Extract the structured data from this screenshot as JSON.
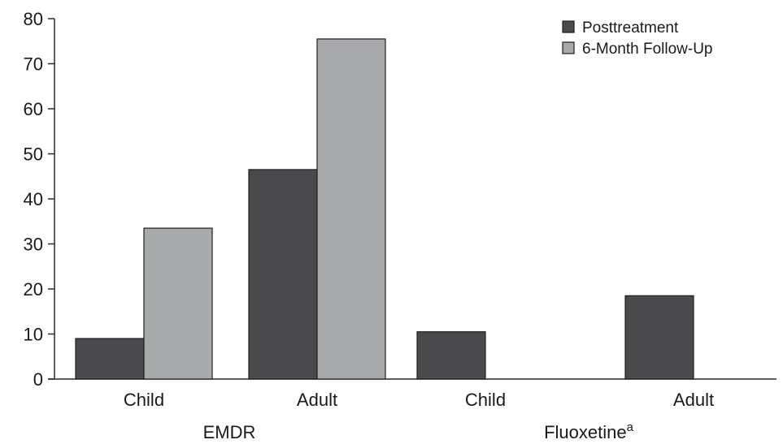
{
  "chart_data": {
    "type": "bar",
    "ylim": [
      0,
      80
    ],
    "yticks": [
      0,
      10,
      20,
      30,
      40,
      50,
      60,
      70,
      80
    ],
    "legend_position": "top-right",
    "grid": false,
    "series": [
      {
        "name": "Posttreatment",
        "color": "#4a4a4c"
      },
      {
        "name": "6-Month Follow-Up",
        "color": "#a8a9ab"
      }
    ],
    "groups": [
      {
        "label": "EMDR",
        "superscript": "",
        "categories": [
          {
            "label": "Child",
            "values": [
              9,
              33.5
            ]
          },
          {
            "label": "Adult",
            "values": [
              46.5,
              75.5
            ]
          }
        ]
      },
      {
        "label": "Fluoxetine",
        "superscript": "a",
        "categories": [
          {
            "label": "Child",
            "values": [
              10.5,
              null
            ]
          },
          {
            "label": "Adult",
            "values": [
              18.5,
              null
            ]
          }
        ]
      }
    ]
  }
}
